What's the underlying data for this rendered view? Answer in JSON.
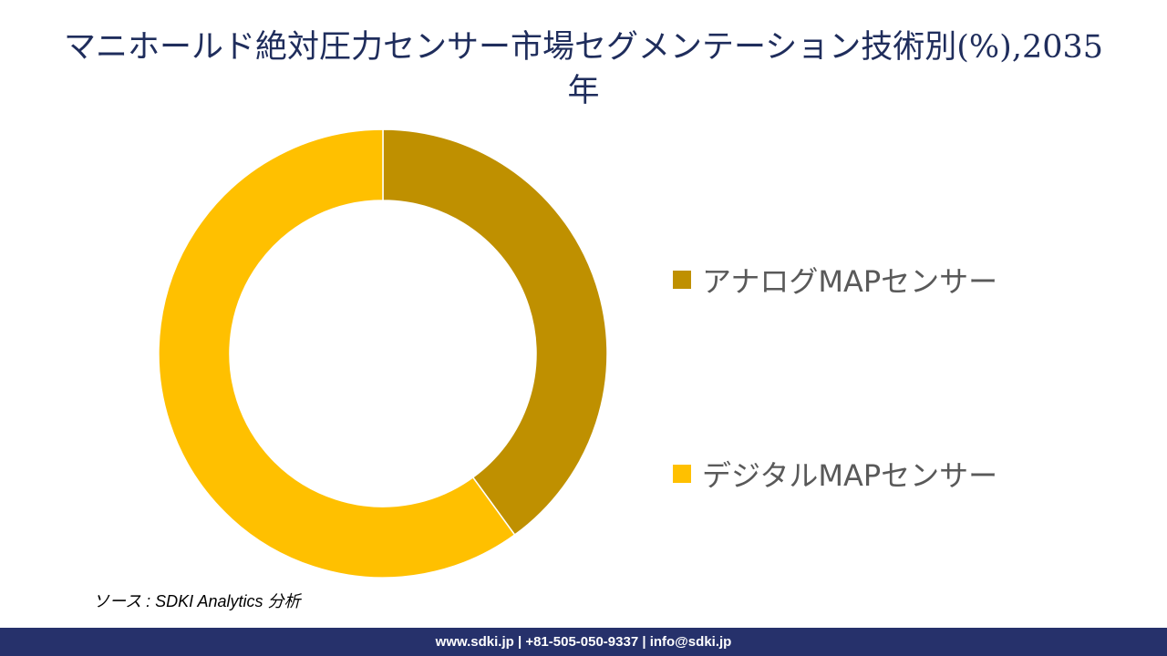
{
  "title": {
    "line1": "マニホールド絶対圧力センサー市場セグメンテーション技術別(%),2035",
    "line2": "年"
  },
  "legend": {
    "items": [
      {
        "label": "アナログMAPセンサー",
        "color": "#bf9000"
      },
      {
        "label": "デジタルMAPセンサー",
        "color": "#ffc000"
      }
    ]
  },
  "source": "ソース : SDKI Analytics 分析",
  "footer": "www.sdki.jp | +81-505-050-9337 | info@sdki.jp",
  "chart_data": {
    "type": "pie",
    "subtype": "donut",
    "title": "マニホールド絶対圧力センサー市場セグメンテーション技術別(%),2035年",
    "categories": [
      "アナログMAPセンサー",
      "デジタルMAPセンサー"
    ],
    "values": [
      40,
      60
    ],
    "colors": [
      "#bf9000",
      "#ffc000"
    ],
    "start_angle_deg": 0,
    "direction": "clockwise",
    "legend_position": "right",
    "data_labels": false
  }
}
